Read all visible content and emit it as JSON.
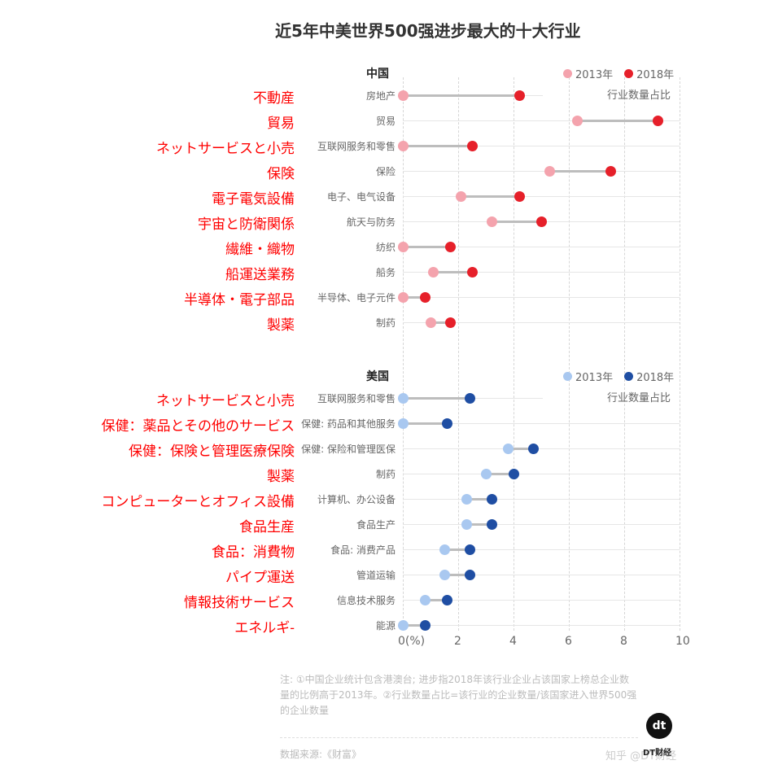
{
  "title": "近5年中美世界500强进步最大的十大行业",
  "unit_label": "行业数量占比",
  "china": {
    "header": "中国",
    "legend": [
      {
        "label": "2013年",
        "color": "#f4a3ad"
      },
      {
        "label": "2018年",
        "color": "#e6202a"
      }
    ]
  },
  "usa": {
    "header": "美国",
    "legend": [
      {
        "label": "2013年",
        "color": "#a9c8f0"
      },
      {
        "label": "2018年",
        "color": "#1f4ea3"
      }
    ]
  },
  "x_ticks": [
    "0(%)",
    "2",
    "4",
    "6",
    "8",
    "10"
  ],
  "note": "注: ①中国企业统计包含港澳台; 进步指2018年该行业企业占该国家上榜总企业数量的比例高于2013年。②行业数量占比=该行业的企业数量/该国家进入世界500强的企业数量",
  "source": "数据来源:《财富》",
  "watermark": "知乎 @DT财经",
  "logo": {
    "mark": "dt",
    "text": "DT财经"
  },
  "chart_data": [
    {
      "type": "dumbbell",
      "title": "中国",
      "xlabel": "行业数量占比 (%)",
      "xlim": [
        0,
        10
      ],
      "x_ticks": [
        0,
        2,
        4,
        6,
        8,
        10
      ],
      "grid": true,
      "legend": [
        "2013年",
        "2018年"
      ],
      "categories": [
        "房地产",
        "贸易",
        "互联网服务和零售",
        "保险",
        "电子、电气设备",
        "航天与防务",
        "纺织",
        "船务",
        "半导体、电子元件",
        "制药"
      ],
      "categories_ja": [
        "不動産",
        "貿易",
        "ネットサービスと小売",
        "保険",
        "電子電気設備",
        "宇宙と防衛関係",
        "繊維・織物",
        "船運送業務",
        "半導体・電子部品",
        "製薬"
      ],
      "series": [
        {
          "name": "2013年",
          "values": [
            0,
            6.3,
            0,
            5.3,
            2.1,
            3.2,
            0,
            1.1,
            0,
            1.0
          ]
        },
        {
          "name": "2018年",
          "values": [
            4.2,
            9.2,
            2.5,
            7.5,
            4.2,
            5.0,
            1.7,
            2.5,
            0.8,
            1.7
          ]
        }
      ]
    },
    {
      "type": "dumbbell",
      "title": "美国",
      "xlabel": "行业数量占比 (%)",
      "xlim": [
        0,
        10
      ],
      "x_ticks": [
        0,
        2,
        4,
        6,
        8,
        10
      ],
      "grid": true,
      "legend": [
        "2013年",
        "2018年"
      ],
      "categories": [
        "互联网服务和零售",
        "保健: 药品和其他服务",
        "保健: 保险和管理医保",
        "制药",
        "计算机、办公设备",
        "食品生产",
        "食品: 消费产品",
        "管道运输",
        "信息技术服务",
        "能源"
      ],
      "categories_ja": [
        "ネットサービスと小売",
        "保健：薬品とその他のサービス",
        "保健：保険と管理医療保険",
        "製薬",
        "コンピューターとオフィス設備",
        "食品生産",
        "食品：消費物",
        "パイプ運送",
        "情報技術サービス",
        "エネルギ-"
      ],
      "series": [
        {
          "name": "2013年",
          "values": [
            0,
            0,
            3.8,
            3.0,
            2.3,
            2.3,
            1.5,
            1.5,
            0.8,
            0
          ]
        },
        {
          "name": "2018年",
          "values": [
            2.4,
            1.6,
            4.7,
            4.0,
            3.2,
            3.2,
            2.4,
            2.4,
            1.6,
            0.8
          ]
        }
      ]
    }
  ]
}
